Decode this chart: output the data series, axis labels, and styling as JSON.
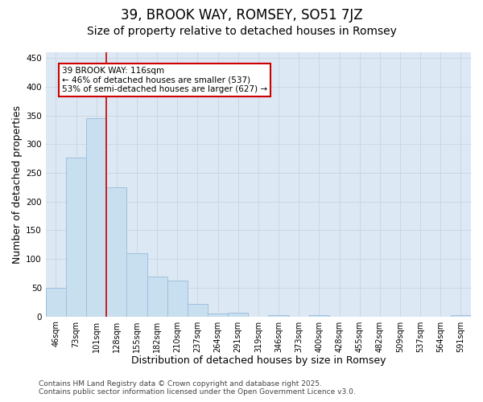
{
  "title": "39, BROOK WAY, ROMSEY, SO51 7JZ",
  "subtitle": "Size of property relative to detached houses in Romsey",
  "xlabel": "Distribution of detached houses by size in Romsey",
  "ylabel": "Number of detached properties",
  "categories": [
    "46sqm",
    "73sqm",
    "101sqm",
    "128sqm",
    "155sqm",
    "182sqm",
    "210sqm",
    "237sqm",
    "264sqm",
    "291sqm",
    "319sqm",
    "346sqm",
    "373sqm",
    "400sqm",
    "428sqm",
    "455sqm",
    "482sqm",
    "509sqm",
    "537sqm",
    "564sqm",
    "591sqm"
  ],
  "values": [
    50,
    277,
    345,
    225,
    110,
    70,
    63,
    22,
    5,
    7,
    0,
    2,
    0,
    2,
    0,
    0,
    0,
    0,
    0,
    0,
    2
  ],
  "bar_color": "#c8dff0",
  "bar_edge_color": "#a0c0dc",
  "grid_color": "#c8d4e0",
  "background_color": "#ffffff",
  "plot_bg_color": "#dce8f4",
  "vline_x": 2.5,
  "vline_color": "#cc0000",
  "annotation_text": "39 BROOK WAY: 116sqm\n← 46% of detached houses are smaller (537)\n53% of semi-detached houses are larger (627) →",
  "annotation_box_color": "#ffffff",
  "annotation_box_edge": "#cc0000",
  "ylim": [
    0,
    460
  ],
  "yticks": [
    0,
    50,
    100,
    150,
    200,
    250,
    300,
    350,
    400,
    450
  ],
  "footer_line1": "Contains HM Land Registry data © Crown copyright and database right 2025.",
  "footer_line2": "Contains public sector information licensed under the Open Government Licence v3.0.",
  "title_fontsize": 12,
  "subtitle_fontsize": 10,
  "tick_fontsize": 7,
  "label_fontsize": 9,
  "footer_fontsize": 6.5
}
